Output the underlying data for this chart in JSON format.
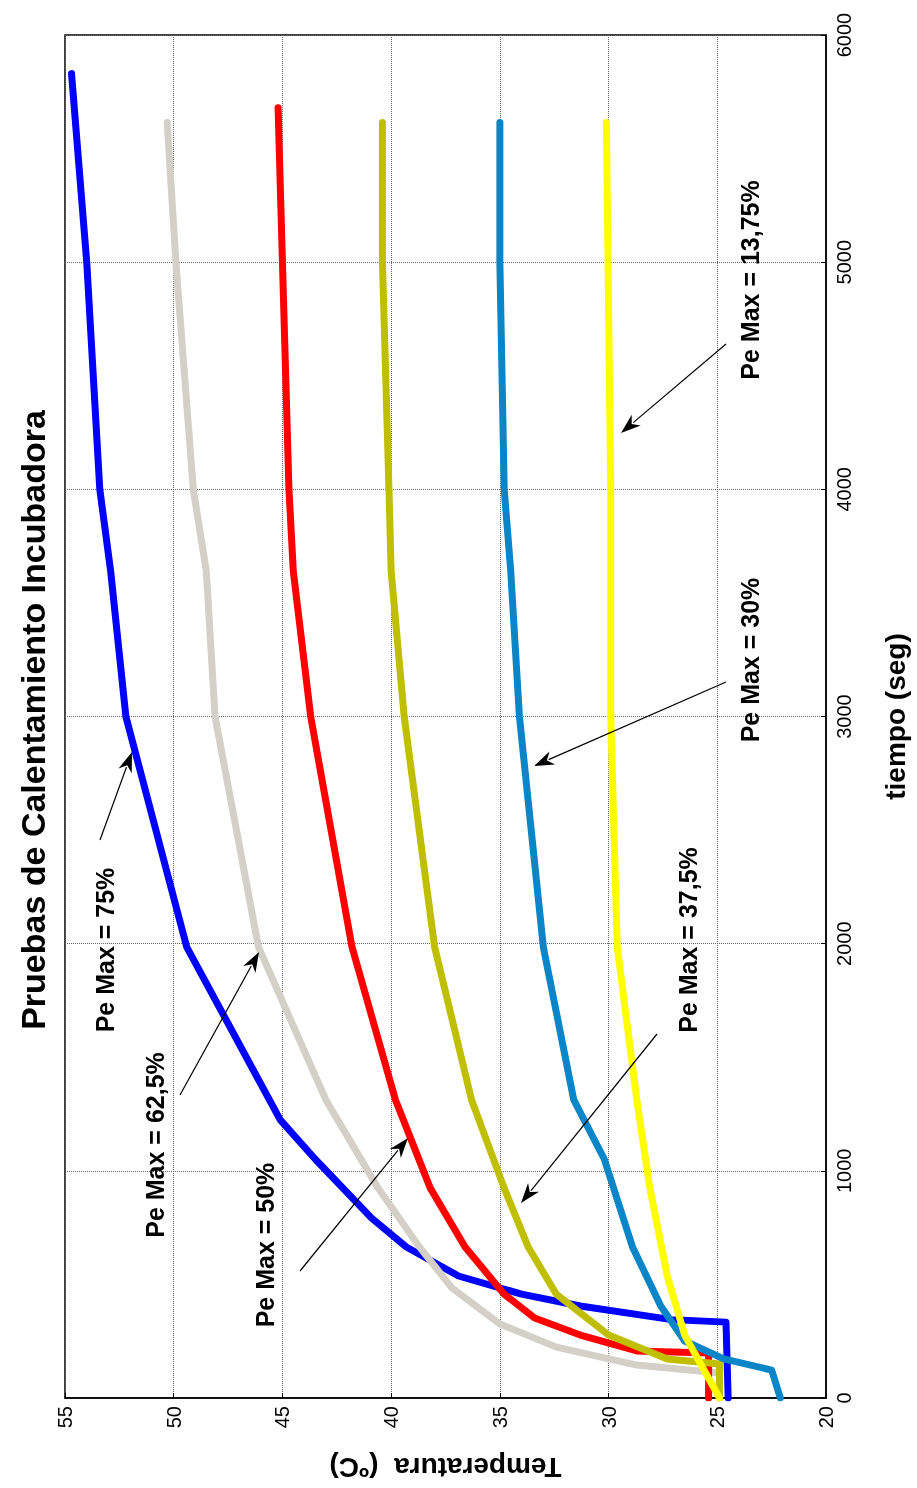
{
  "chart_data": {
    "type": "line",
    "title": "Pruebas de Calentamiento Incubadora",
    "xlabel": "Temperatura  (ºC)",
    "ylabel": "tiempo (seg)",
    "xlim": [
      55,
      20
    ],
    "xticks": [
      55,
      50,
      45,
      40,
      35,
      30,
      25,
      20
    ],
    "ylim": [
      0,
      6000
    ],
    "yticks": [
      0,
      1000,
      2000,
      3000,
      4000,
      5000,
      6000
    ],
    "grid": true,
    "series": [
      {
        "color": "#0000ff",
        "x": [
          24.5,
          24.6,
          27.1,
          31.3,
          34,
          36.9,
          39.3,
          40.9,
          43.5,
          45.1,
          49.4,
          52.2,
          52.9,
          53.4,
          54,
          54.7
        ],
        "values": [
          0,
          334,
          345,
          405,
          457,
          537,
          665,
          792,
          1052,
          1224,
          1985,
          3000,
          3640,
          4000,
          5000,
          5830
        ]
      },
      {
        "color": "#d4d0c8",
        "x": [
          24.9,
          28.7,
          32.4,
          35,
          37.2,
          38.7,
          40.6,
          43,
          46.1,
          48.1,
          48.5,
          49.1,
          49.9,
          50.3
        ],
        "values": [
          110,
          145,
          224,
          326,
          484,
          665,
          924,
          1312,
          1985,
          3000,
          3640,
          4000,
          5000,
          5615
        ]
      },
      {
        "color": "#ff0000",
        "x": [
          25.4,
          25.4,
          28.7,
          31.3,
          33.4,
          34.8,
          36.6,
          38.2,
          39.8,
          41.8,
          43.7,
          44.5,
          44.7,
          45,
          45.2
        ],
        "values": [
          0,
          198,
          207,
          277,
          352,
          457,
          665,
          924,
          1312,
          1985,
          3000,
          3640,
          4000,
          5000,
          5680
        ]
      },
      {
        "color": "#bfbf00",
        "x": [
          24.9,
          24.9,
          27.3,
          30,
          32.4,
          33.7,
          34.8,
          36.3,
          38,
          39.4,
          40,
          40.1,
          40.4,
          40.4
        ],
        "values": [
          0,
          150,
          172,
          277,
          457,
          665,
          924,
          1312,
          1985,
          3000,
          3640,
          4000,
          5000,
          5615
        ]
      },
      {
        "color": "#0a86c8",
        "x": [
          22.1,
          22.5,
          24.7,
          26.5,
          27.6,
          28.9,
          30.2,
          31.6,
          33,
          34.1,
          34.5,
          34.8,
          35,
          35
        ],
        "values": [
          0,
          123,
          172,
          251,
          405,
          665,
          1052,
          1312,
          1985,
          3000,
          3640,
          4000,
          5000,
          5615
        ]
      },
      {
        "color": "#ffff00",
        "x": [
          24.9,
          26.5,
          27.3,
          28.1,
          28.7,
          29.6,
          29.9,
          29.9,
          29.9,
          30.1
        ],
        "values": [
          0,
          277,
          537,
          924,
          1312,
          1985,
          3000,
          3640,
          4000,
          5615
        ]
      }
    ],
    "annotations": [
      "Pe Max = 75%",
      "Pe Max = 62,5%",
      "Pe Max = 50%",
      "Pe Max = 37,5%",
      "Pe Max = 30%",
      "Pe Max = 13,75%"
    ]
  }
}
